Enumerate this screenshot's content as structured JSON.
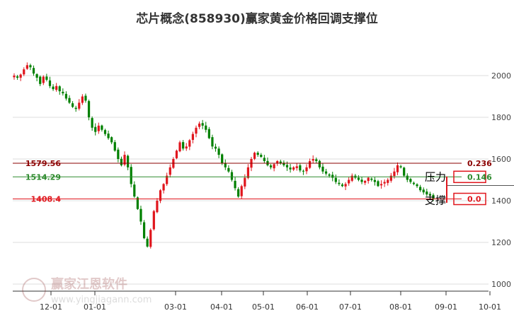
{
  "title": "芯片概念(858930)赢家黄金价格回调支撑位",
  "chart_data": {
    "type": "candlestick",
    "title": "芯片概念(858930)赢家黄金价格回调支撑位",
    "y_ticks": [
      1000,
      1200,
      1400,
      1600,
      1800,
      2000
    ],
    "ylim": [
      1000,
      2060
    ],
    "x_ticks": [
      "12-01",
      "01-01",
      "03-01",
      "04-01",
      "05-01",
      "06-01",
      "07-01",
      "08-01",
      "09-01",
      "10-01"
    ],
    "grid": "horizontal",
    "up_color": "#e0161d",
    "down_color": "#008000",
    "levels": [
      {
        "price": "1579.56",
        "value": 1579.56,
        "ratio": "0.236",
        "color": "#8b0000"
      },
      {
        "price": "1514.29",
        "value": 1514.29,
        "ratio": "0.146",
        "color": "#2e8b2e"
      },
      {
        "price": "1408.4",
        "value": 1408.4,
        "ratio": "0.0",
        "color": "#e0161d"
      }
    ],
    "annotations": {
      "resistance": "压力",
      "support": "支撑"
    },
    "close_series": [
      2000,
      1990,
      2005,
      2030,
      2050,
      2040,
      2010,
      1990,
      1960,
      1995,
      1980,
      1950,
      1935,
      1950,
      1925,
      1915,
      1890,
      1870,
      1850,
      1840,
      1870,
      1900,
      1880,
      1800,
      1750,
      1730,
      1760,
      1740,
      1720,
      1700,
      1680,
      1640,
      1600,
      1570,
      1620,
      1560,
      1480,
      1420,
      1360,
      1300,
      1220,
      1180,
      1260,
      1350,
      1400,
      1450,
      1480,
      1520,
      1560,
      1600,
      1640,
      1680,
      1650,
      1660,
      1690,
      1720,
      1750,
      1770,
      1760,
      1740,
      1700,
      1660,
      1650,
      1620,
      1580,
      1560,
      1540,
      1500,
      1460,
      1420,
      1470,
      1510,
      1560,
      1600,
      1630,
      1620,
      1610,
      1590,
      1570,
      1560,
      1575,
      1590,
      1580,
      1570,
      1560,
      1550,
      1560,
      1565,
      1545,
      1540,
      1560,
      1590,
      1600,
      1590,
      1560,
      1540,
      1530,
      1520,
      1510,
      1490,
      1480,
      1470,
      1480,
      1500,
      1520,
      1510,
      1500,
      1490,
      1495,
      1510,
      1500,
      1490,
      1470,
      1480,
      1490,
      1500,
      1520,
      1540,
      1570,
      1560,
      1520,
      1500,
      1490,
      1480,
      1470,
      1450,
      1440,
      1430,
      1425,
      1410
    ]
  },
  "watermark": {
    "name": "赢家江恩软件",
    "url": "www.yingjiagann.com"
  }
}
